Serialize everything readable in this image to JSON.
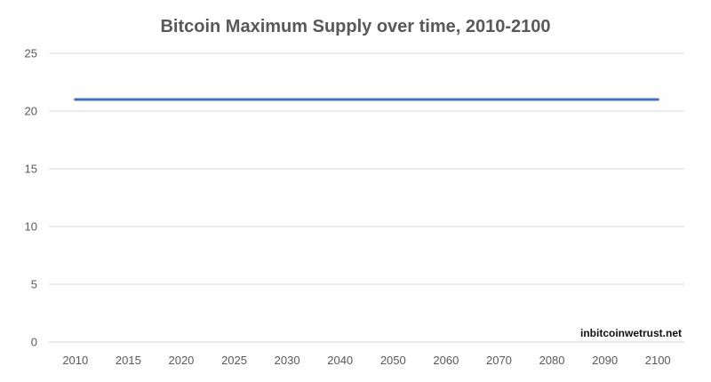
{
  "chart_data": {
    "type": "line",
    "title": "Bitcoin Maximum Supply over time, 2010-2100",
    "xlabel": "",
    "ylabel": "",
    "categories": [
      "2010",
      "2015",
      "2020",
      "2025",
      "2030",
      "2040",
      "2050",
      "2060",
      "2070",
      "2080",
      "2090",
      "2100"
    ],
    "series": [
      {
        "values": [
          21,
          21,
          21,
          21,
          21,
          21,
          21,
          21,
          21,
          21,
          21,
          21
        ],
        "color": "#4472C4"
      }
    ],
    "ylim": [
      0,
      25
    ],
    "yticks": [
      0,
      5,
      10,
      15,
      20,
      25
    ],
    "grid": true,
    "legend": "none",
    "watermark": "inbitcoinwetrust.net",
    "colors": {
      "line": "#4472C4",
      "grid": "#d9d9d9",
      "text": "#595959"
    }
  }
}
